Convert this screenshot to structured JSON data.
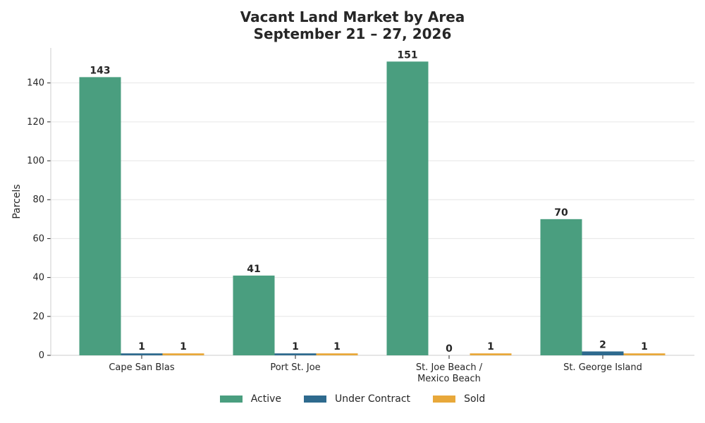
{
  "chart_data": {
    "type": "bar",
    "title_lines": [
      "Vacant Land Market by Area",
      "September 21 – 27, 2026"
    ],
    "xlabel": "",
    "ylabel": "Parcels",
    "categories": [
      [
        "Cape San Blas"
      ],
      [
        "Port St. Joe"
      ],
      [
        "St. Joe Beach /",
        "Mexico Beach"
      ],
      [
        "St. George Island"
      ]
    ],
    "series": [
      {
        "name": "Active",
        "color": "#4a9e7f",
        "values": [
          143,
          41,
          151,
          70
        ]
      },
      {
        "name": "Under Contract",
        "color": "#2e6a8e",
        "values": [
          1,
          1,
          0,
          2
        ]
      },
      {
        "name": "Sold",
        "color": "#e8a83a",
        "values": [
          1,
          1,
          1,
          1
        ]
      }
    ],
    "ylim": [
      0,
      158
    ],
    "yticks": [
      0,
      20,
      40,
      60,
      80,
      100,
      120,
      140
    ],
    "grid": "horizontal",
    "legend_position": "bottom-center",
    "data_labels": true
  }
}
